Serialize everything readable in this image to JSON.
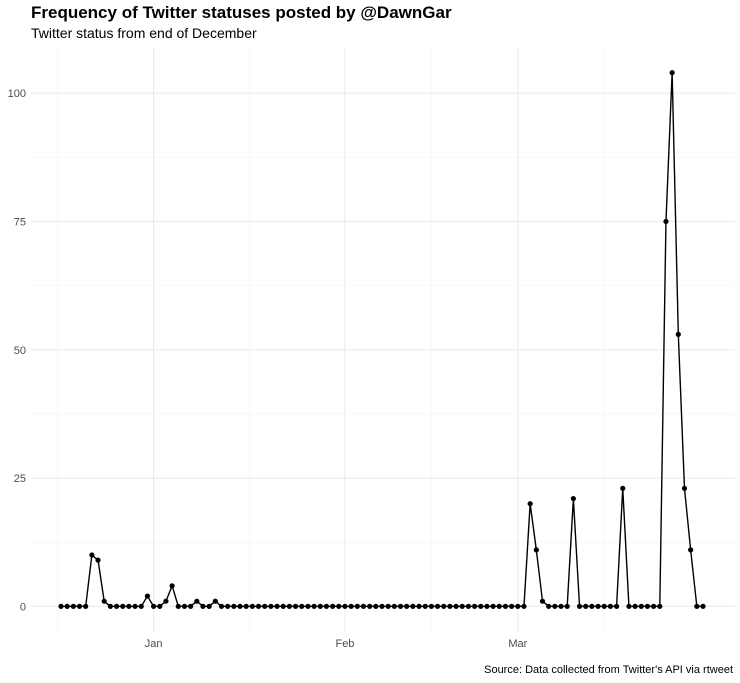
{
  "chart_data": {
    "type": "line",
    "title": "Frequency of Twitter statuses posted by @DawnGar",
    "subtitle": "Twitter status from end of December",
    "caption": "Source: Data collected from Twitter's API via rtweet",
    "xlabel": "",
    "ylabel": "",
    "x_start": "2017-12-17",
    "x_step_days": 1,
    "x_ticks": [
      {
        "label": "Jan",
        "date": "2018-01-01"
      },
      {
        "label": "Feb",
        "date": "2018-02-01"
      },
      {
        "label": "Mar",
        "date": "2018-03-01"
      }
    ],
    "y_ticks": [
      0,
      25,
      50,
      75,
      100
    ],
    "ylim": [
      -5,
      109
    ],
    "grid": true,
    "line_color": "#000000",
    "point_color": "#000000",
    "values": [
      0,
      0,
      0,
      0,
      0,
      10,
      9,
      1,
      0,
      0,
      0,
      0,
      0,
      0,
      2,
      0,
      0,
      1,
      4,
      0,
      0,
      0,
      1,
      0,
      0,
      1,
      0,
      0,
      0,
      0,
      0,
      0,
      0,
      0,
      0,
      0,
      0,
      0,
      0,
      0,
      0,
      0,
      0,
      0,
      0,
      0,
      0,
      0,
      0,
      0,
      0,
      0,
      0,
      0,
      0,
      0,
      0,
      0,
      0,
      0,
      0,
      0,
      0,
      0,
      0,
      0,
      0,
      0,
      0,
      0,
      0,
      0,
      0,
      0,
      0,
      0,
      20,
      11,
      1,
      0,
      0,
      0,
      0,
      21,
      0,
      0,
      0,
      0,
      0,
      0,
      0,
      23,
      0,
      0,
      0,
      0,
      0,
      0,
      75,
      104,
      53,
      23,
      11,
      0,
      0
    ]
  }
}
